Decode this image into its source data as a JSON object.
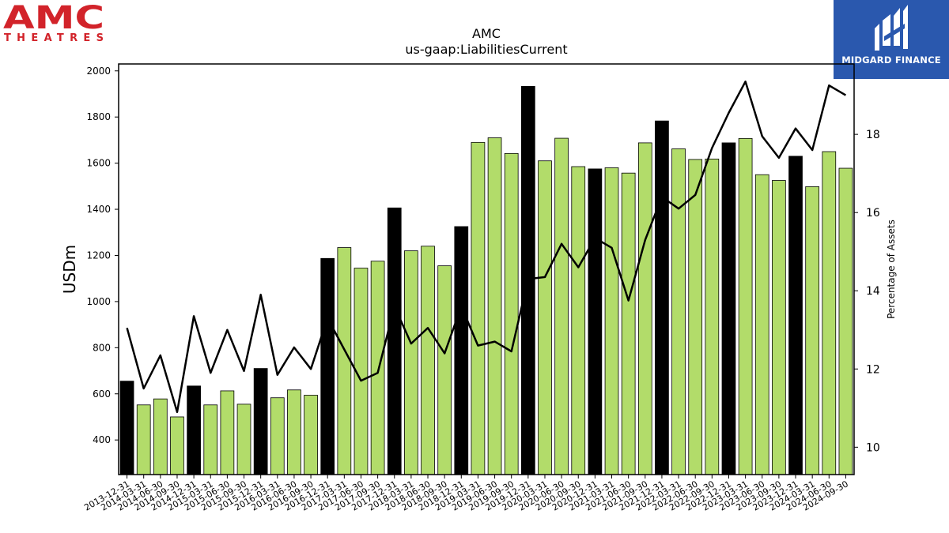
{
  "logos": {
    "amc_wordmark": "AMC",
    "amc_sub": "THEATRES",
    "amc_color": "#d2232a",
    "midgard_name": "MIDGARD FINANCE",
    "midgard_bg": "#2a58ae"
  },
  "chart_data": {
    "type": "bar",
    "title": "AMC",
    "subtitle": "us-gaap:LiabilitiesCurrent",
    "ylabel": "USDm",
    "y2label": "Percentage of Assets",
    "ylim": [
      250,
      2030
    ],
    "y2lim": [
      9.3,
      19.8
    ],
    "yticks": [
      400,
      600,
      800,
      1000,
      1200,
      1400,
      1600,
      1800,
      2000
    ],
    "y2ticks": [
      10,
      12,
      14,
      16,
      18
    ],
    "grid": false,
    "colors": {
      "bar_q4": "#000000",
      "bar_other": "#b2dc6a",
      "line": "#000000"
    },
    "categories": [
      "2013-12-31",
      "2014-03-31",
      "2014-06-30",
      "2014-09-30",
      "2014-12-31",
      "2015-03-31",
      "2015-06-30",
      "2015-09-30",
      "2015-12-31",
      "2016-03-31",
      "2016-06-30",
      "2016-09-30",
      "2016-12-31",
      "2017-03-31",
      "2017-06-30",
      "2017-09-30",
      "2017-12-31",
      "2018-03-31",
      "2018-06-30",
      "2018-09-30",
      "2018-12-31",
      "2019-03-31",
      "2019-06-30",
      "2019-09-30",
      "2019-12-31",
      "2020-03-31",
      "2020-06-30",
      "2020-09-30",
      "2020-12-31",
      "2021-03-31",
      "2021-06-30",
      "2021-09-30",
      "2021-12-31",
      "2022-03-31",
      "2022-06-30",
      "2022-09-30",
      "2022-12-31",
      "2023-03-31",
      "2023-06-30",
      "2023-09-30",
      "2023-12-31",
      "2024-03-31",
      "2024-06-30",
      "2024-09-30"
    ],
    "series": [
      {
        "type": "bar",
        "values": [
          655,
          552,
          578,
          500,
          634,
          552,
          613,
          555,
          710,
          583,
          617,
          594,
          1187,
          1234,
          1145,
          1175,
          1406,
          1220,
          1240,
          1155,
          1325,
          1690,
          1710,
          1642,
          1933,
          1610,
          1708,
          1585,
          1575,
          1580,
          1557,
          1688,
          1783,
          1662,
          1616,
          1618,
          1688,
          1707,
          1550,
          1525,
          1630,
          1498,
          1650,
          1578
        ]
      },
      {
        "type": "line",
        "axis": "right",
        "values": [
          13.05,
          11.5,
          12.35,
          10.9,
          13.35,
          11.9,
          13.0,
          11.95,
          13.9,
          11.85,
          12.55,
          12.0,
          13.3,
          12.5,
          11.7,
          11.9,
          13.6,
          12.65,
          13.05,
          12.4,
          13.6,
          12.6,
          12.7,
          12.45,
          14.3,
          14.35,
          15.2,
          14.6,
          15.35,
          15.1,
          13.75,
          15.3,
          16.4,
          16.1,
          16.45,
          17.65,
          18.55,
          19.35,
          17.95,
          17.4,
          18.15,
          17.6,
          19.25,
          19.0
        ]
      }
    ]
  }
}
